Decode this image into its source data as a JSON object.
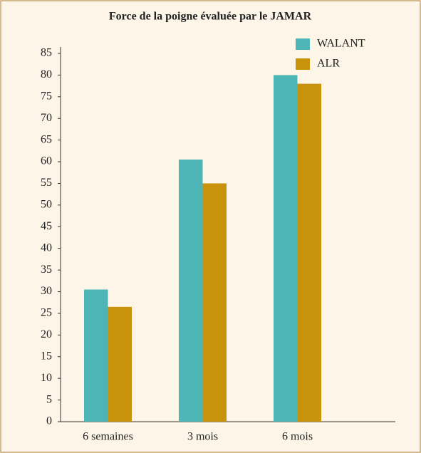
{
  "chart_data": {
    "type": "bar",
    "title": "Force de la poigne évaluée par le JAMAR",
    "categories": [
      "6 semaines",
      "3 mois",
      "6 mois"
    ],
    "series": [
      {
        "name": "WALANT",
        "color": "#4db5b5",
        "values": [
          30.5,
          60.5,
          80
        ]
      },
      {
        "name": "ALR",
        "color": "#c8920a",
        "values": [
          26.5,
          55,
          78
        ]
      }
    ],
    "ylim": [
      0,
      85
    ],
    "yticks": [
      0,
      5,
      10,
      15,
      20,
      25,
      30,
      35,
      40,
      45,
      50,
      55,
      60,
      65,
      70,
      75,
      80,
      85
    ],
    "legend": "upper right"
  }
}
